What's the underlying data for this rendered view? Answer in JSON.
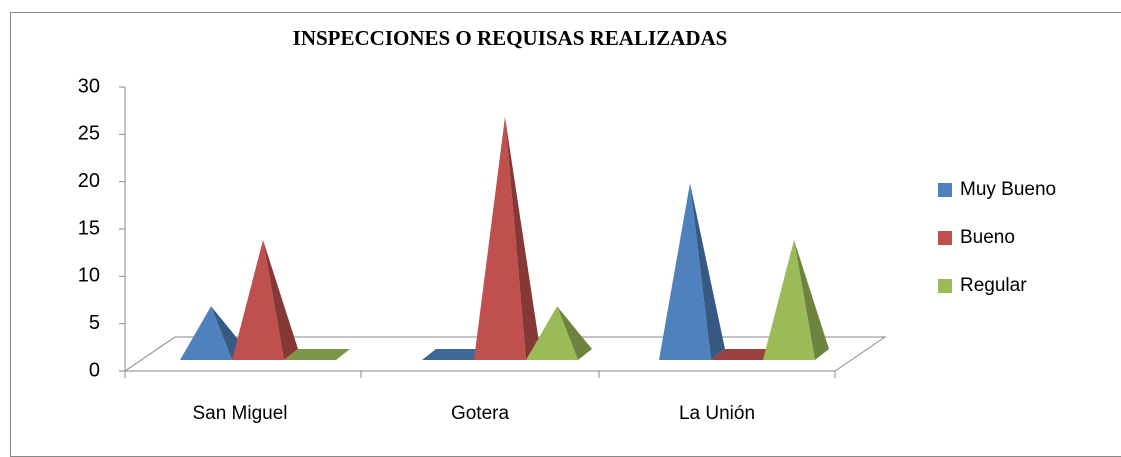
{
  "chart_data": {
    "type": "pyramid3d",
    "title": "INSPECCIONES O REQUISAS REALIZADAS",
    "categories": [
      "San Miguel",
      "Gotera",
      "La Unión"
    ],
    "series": [
      {
        "name": "Muy Bueno",
        "color": "#4f81bd",
        "values": [
          8,
          0,
          21
        ]
      },
      {
        "name": "Bueno",
        "color": "#c0504d",
        "values": [
          15,
          28,
          0
        ]
      },
      {
        "name": "Regular",
        "color": "#9bbb59",
        "values": [
          0,
          8,
          15
        ]
      }
    ],
    "ylim": [
      0,
      30
    ],
    "yticks": [
      0,
      5,
      10,
      15,
      20,
      25,
      30
    ],
    "legend": "right"
  }
}
